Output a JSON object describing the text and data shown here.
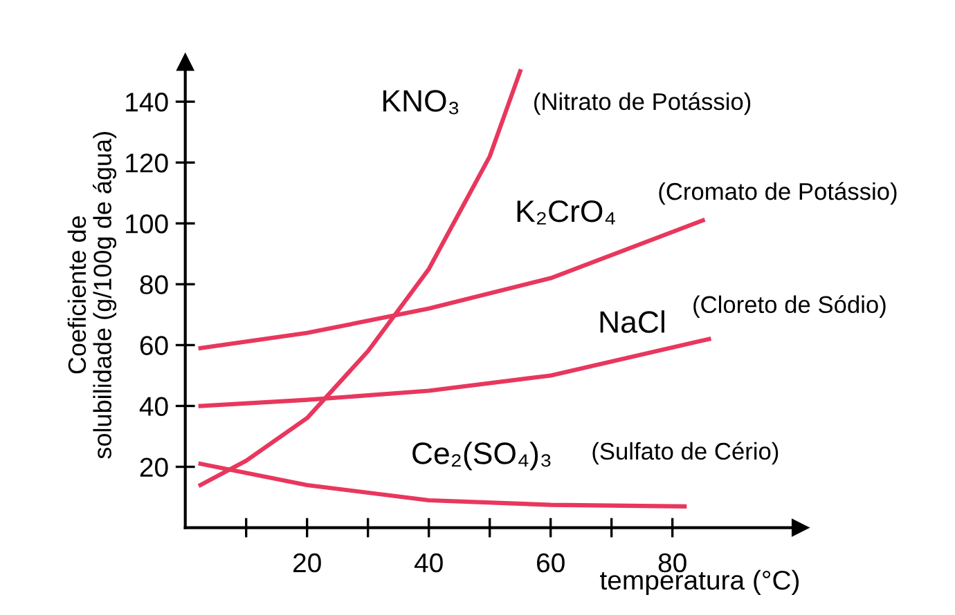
{
  "chart_data": {
    "type": "line",
    "xlabel": "temperatura (°C)",
    "ylabel": "Coeficiente de\nsolubilidade (g/100g de água)",
    "xlim": [
      0,
      101
    ],
    "ylim": [
      0,
      153
    ],
    "xticks": [
      {
        "value": 10,
        "label": null
      },
      20,
      {
        "value": 30,
        "label": null
      },
      40,
      {
        "value": 50,
        "label": null
      },
      60,
      {
        "value": 70,
        "label": null
      },
      80
    ],
    "yticks": [
      20,
      40,
      60,
      80,
      100,
      120,
      140
    ],
    "grid": false,
    "legend": false,
    "marker": "none",
    "line_style": "solid",
    "series": [
      {
        "name": "KNO₃",
        "color": "#e8375d",
        "x": [
          2.5,
          10,
          20,
          30,
          40,
          50,
          55
        ],
        "values": [
          14,
          22,
          36,
          58,
          85,
          122,
          150
        ]
      },
      {
        "name": "K₂CrO₄",
        "color": "#e8375d",
        "x": [
          2.5,
          20,
          40,
          60,
          85
        ],
        "values": [
          59,
          64,
          72,
          82,
          101
        ]
      },
      {
        "name": "NaCl",
        "color": "#e8375d",
        "x": [
          2.5,
          20,
          40,
          60,
          86
        ],
        "values": [
          40,
          42,
          45,
          50,
          62
        ]
      },
      {
        "name": "Ce₂(SO₄)₃",
        "color": "#e8375d",
        "x": [
          2.5,
          20,
          40,
          60,
          82
        ],
        "values": [
          21,
          14,
          9,
          7.5,
          7
        ]
      }
    ],
    "annotations": [
      "(Nitrato de Potássio)",
      "(Cromato de Potássio)",
      "(Cloreto de Sódio)",
      "(Sulfato de Cério)"
    ]
  }
}
